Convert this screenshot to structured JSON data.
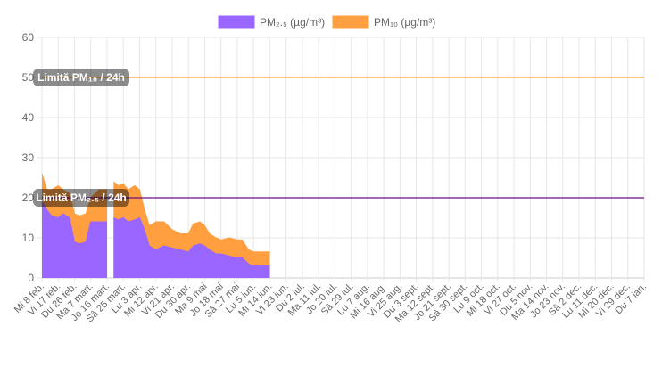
{
  "chart_data": {
    "type": "area",
    "ylim": [
      0,
      60
    ],
    "y_ticks": [
      0,
      10,
      20,
      30,
      40,
      50,
      60
    ],
    "grid": true,
    "legend_position": "top",
    "categories": [
      "Mi 8 feb.",
      "Vi 17 feb.",
      "Du 26 feb.",
      "Ma 7 mart.",
      "Jo 16 mart.",
      "Sâ 25 mart.",
      "Lu 3 apr.",
      "Mi 12 apr.",
      "Vi 21 apr.",
      "Du 30 apr.",
      "Ma 9 mai",
      "Jo 18 mai",
      "Sâ 27 mai",
      "Lu 5 iun.",
      "Mi 14 iun.",
      "Vi 23 iun.",
      "Du 2 iul.",
      "Ma 11 iul.",
      "Jo 20 iul.",
      "Sâ 29 iul.",
      "Lu 7 aug.",
      "Mi 16 aug.",
      "Vi 25 aug.",
      "Du 3 sept.",
      "Ma 12 sept.",
      "Jo 21 sept.",
      "Sâ 30 sept.",
      "Lu 9 oct.",
      "Mi 18 oct.",
      "Vi 27 oct.",
      "Du 5 nov.",
      "Ma 14 nov.",
      "Jo 23 nov.",
      "Sâ 2 dec.",
      "Lu 11 dec.",
      "Mi 20 dec.",
      "Vi 29 dec.",
      "Du 7 ian."
    ],
    "series": [
      {
        "name": "PM₂.₅ (µg/m³)",
        "color": "#9966ff",
        "points": [
          [
            0,
            19
          ],
          [
            0.3,
            17
          ],
          [
            0.6,
            15.5
          ],
          [
            1,
            15
          ],
          [
            1.3,
            16
          ],
          [
            1.7,
            15
          ],
          [
            2,
            9
          ],
          [
            2.3,
            8.5
          ],
          [
            2.7,
            9
          ],
          [
            3,
            14
          ],
          [
            3.5,
            14
          ],
          [
            4,
            14
          ],
          [
            4.1,
            null
          ],
          [
            4.3,
            null
          ],
          [
            4.4,
            15
          ],
          [
            4.7,
            14.5
          ],
          [
            5,
            15
          ],
          [
            5.3,
            14
          ],
          [
            5.7,
            14.5
          ],
          [
            6,
            15
          ],
          [
            6.3,
            12
          ],
          [
            6.6,
            8
          ],
          [
            7,
            7
          ],
          [
            7.5,
            8
          ],
          [
            8,
            7.5
          ],
          [
            8.5,
            7
          ],
          [
            9,
            6.5
          ],
          [
            9.3,
            8
          ],
          [
            9.7,
            8.5
          ],
          [
            10,
            8
          ],
          [
            10.3,
            7
          ],
          [
            10.7,
            6
          ],
          [
            11,
            6
          ],
          [
            11.5,
            5.5
          ],
          [
            12,
            5
          ],
          [
            12.3,
            5
          ],
          [
            12.7,
            3.5
          ],
          [
            13,
            3
          ],
          [
            13.5,
            3
          ],
          [
            14,
            3
          ]
        ]
      },
      {
        "name": "PM₁₀ (µg/m³)",
        "color": "#ff9f40",
        "points": [
          [
            0,
            26
          ],
          [
            0.3,
            22
          ],
          [
            0.6,
            22
          ],
          [
            1,
            23
          ],
          [
            1.3,
            22
          ],
          [
            1.7,
            21
          ],
          [
            2,
            16
          ],
          [
            2.3,
            15.5
          ],
          [
            2.7,
            16
          ],
          [
            3,
            20
          ],
          [
            3.5,
            22
          ],
          [
            4,
            22
          ],
          [
            4.1,
            null
          ],
          [
            4.3,
            null
          ],
          [
            4.4,
            24
          ],
          [
            4.7,
            23
          ],
          [
            5,
            23.5
          ],
          [
            5.3,
            22
          ],
          [
            5.7,
            23
          ],
          [
            6,
            22
          ],
          [
            6.3,
            17
          ],
          [
            6.6,
            13
          ],
          [
            7,
            14
          ],
          [
            7.5,
            14
          ],
          [
            8,
            12
          ],
          [
            8.5,
            11
          ],
          [
            9,
            11
          ],
          [
            9.3,
            13.5
          ],
          [
            9.7,
            14
          ],
          [
            10,
            13
          ],
          [
            10.3,
            11
          ],
          [
            10.7,
            10
          ],
          [
            11,
            9.5
          ],
          [
            11.5,
            10
          ],
          [
            12,
            9.5
          ],
          [
            12.3,
            9.5
          ],
          [
            12.7,
            7
          ],
          [
            13,
            6.5
          ],
          [
            13.5,
            6.5
          ],
          [
            14,
            6.5
          ]
        ]
      }
    ],
    "reference_lines": [
      {
        "label": "Limită PM₁₀ / 24h",
        "value": 50,
        "color": "#f5a623"
      },
      {
        "label": "Limită PM₂.₅ / 24h",
        "value": 20,
        "color": "#6a0d83"
      }
    ]
  }
}
